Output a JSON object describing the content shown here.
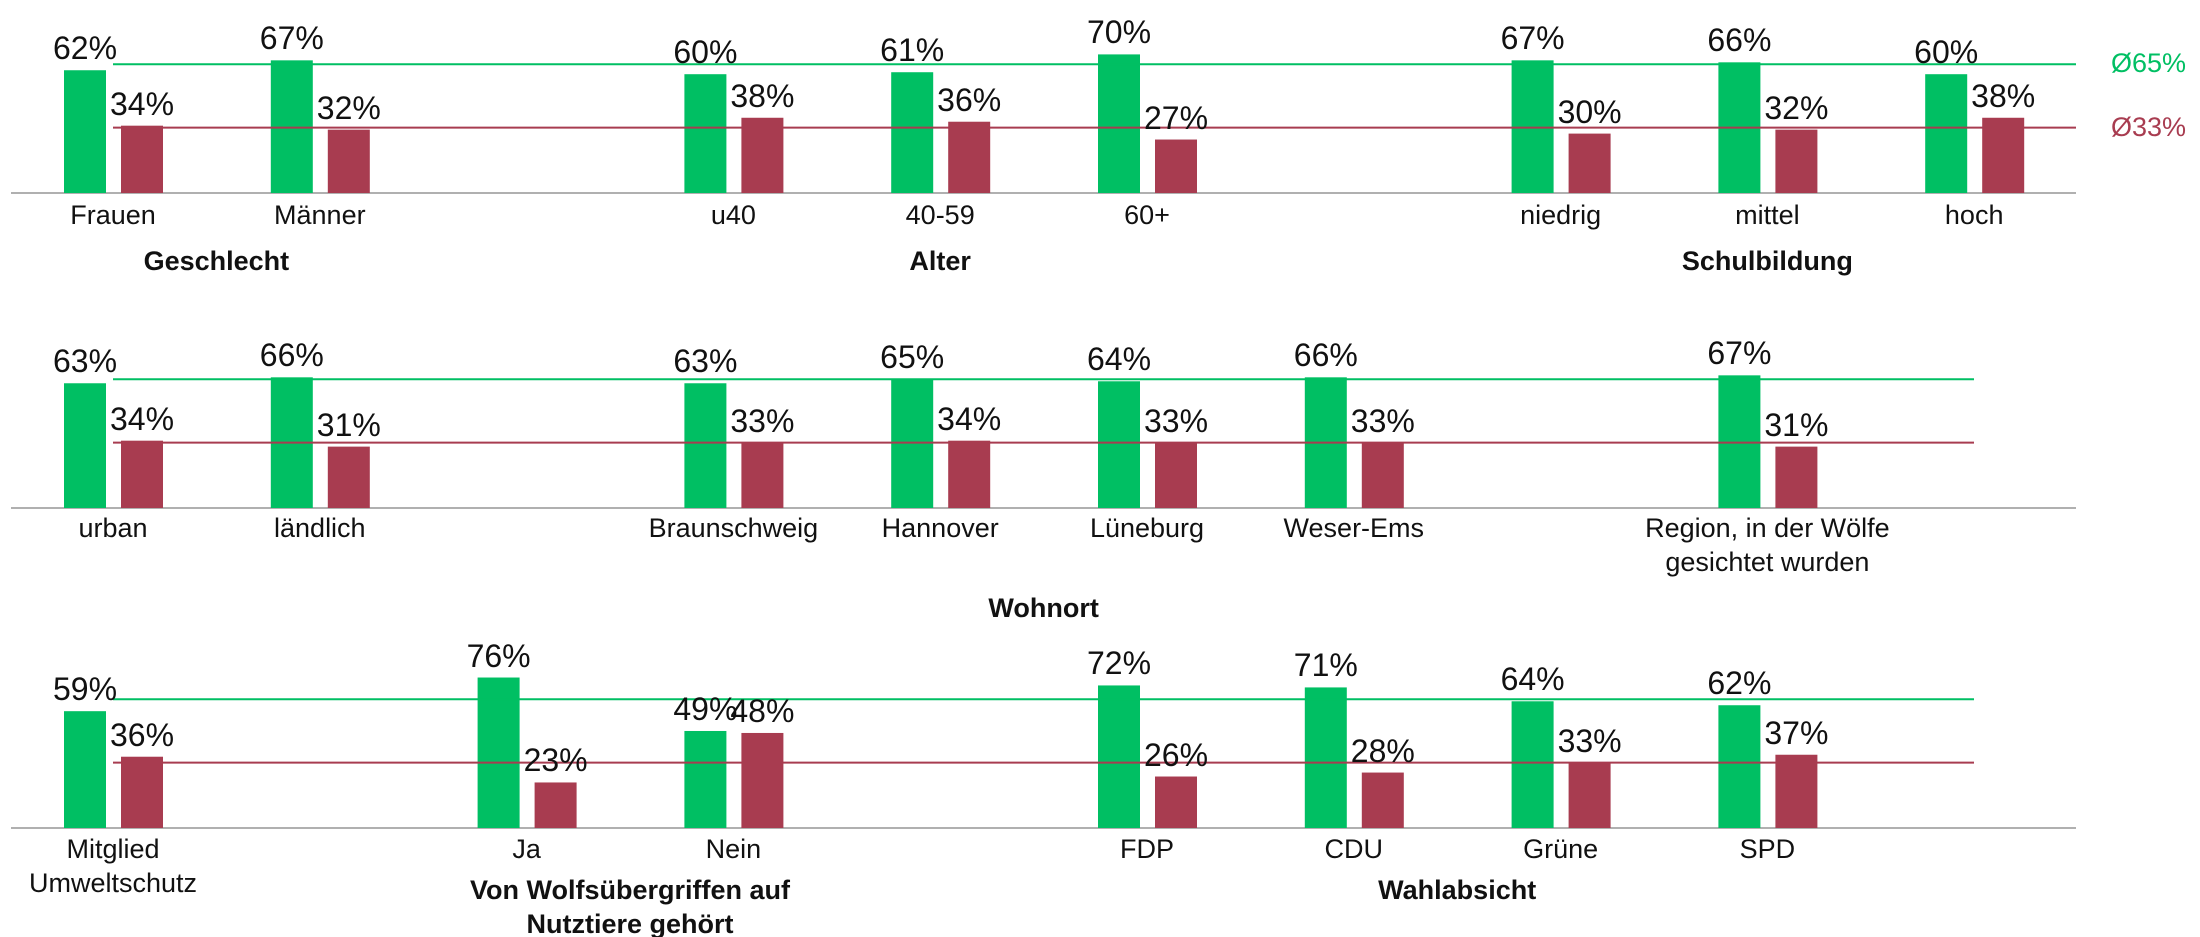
{
  "chart_data": [
    {
      "type": "bar",
      "ylim": [
        0,
        100
      ],
      "categories": [
        "Frauen",
        "Männer",
        null,
        "u40",
        "40-59",
        "60+",
        null,
        "niedrig",
        "mittel",
        "hoch"
      ],
      "group_labels": [
        "Geschlecht",
        "Alter",
        "Schulbildung"
      ],
      "series": [
        {
          "color": "#00bf63",
          "values": [
            62,
            67,
            null,
            60,
            61,
            70,
            null,
            67,
            66,
            60
          ],
          "value_labels": [
            "62%",
            "67%",
            null,
            "60%",
            "61%",
            "70%",
            null,
            "67%",
            "66%",
            "60%"
          ]
        },
        {
          "color": "#a83c50",
          "values": [
            34,
            32,
            null,
            38,
            36,
            27,
            null,
            30,
            32,
            38
          ],
          "value_labels": [
            "34%",
            "32%",
            null,
            "38%",
            "36%",
            "27%",
            null,
            "30%",
            "32%",
            "38%"
          ]
        }
      ],
      "reference_lines": [
        {
          "value": 65,
          "label": "Ø65%",
          "color": "#00bf63"
        },
        {
          "value": 33,
          "label": "Ø33%",
          "color": "#a83c50"
        }
      ]
    },
    {
      "type": "bar",
      "ylim": [
        0,
        100
      ],
      "categories": [
        "urban",
        "ländlich",
        null,
        "Braunschweig",
        "Hannover",
        "Lüneburg",
        "Weser-Ems",
        null,
        "Region, in der Wölfe\ngesichtet wurden"
      ],
      "group_labels": [
        "Wohnort"
      ],
      "series": [
        {
          "color": "#00bf63",
          "values": [
            63,
            66,
            null,
            63,
            65,
            64,
            66,
            null,
            67
          ],
          "value_labels": [
            "63%",
            "66%",
            null,
            "63%",
            "65%",
            "64%",
            "66%",
            null,
            "67%"
          ]
        },
        {
          "color": "#a83c50",
          "values": [
            34,
            31,
            null,
            33,
            34,
            33,
            33,
            null,
            31
          ],
          "value_labels": [
            "34%",
            "31%",
            null,
            "33%",
            "34%",
            "33%",
            "33%",
            null,
            "31%"
          ]
        }
      ],
      "reference_lines": [
        {
          "value": 65,
          "color": "#00bf63"
        },
        {
          "value": 33,
          "color": "#a83c50"
        }
      ]
    },
    {
      "type": "bar",
      "ylim": [
        0,
        100
      ],
      "categories": [
        "Mitglied\nUmweltschutz",
        null,
        "Ja",
        "Nein",
        null,
        "FDP",
        "CDU",
        "Grüne",
        "SPD"
      ],
      "group_labels": [
        "Von Wolfsübergriffen auf\nNutztiere gehört",
        "Wahlabsicht"
      ],
      "series": [
        {
          "color": "#00bf63",
          "values": [
            59,
            null,
            76,
            49,
            null,
            72,
            71,
            64,
            62
          ],
          "value_labels": [
            "59%",
            null,
            "76%",
            "49%",
            null,
            "72%",
            "71%",
            "64%",
            "62%"
          ]
        },
        {
          "color": "#a83c50",
          "values": [
            36,
            null,
            23,
            48,
            null,
            26,
            28,
            33,
            37
          ],
          "value_labels": [
            "36%",
            null,
            "23%",
            "48%",
            null,
            "26%",
            "28%",
            "33%",
            "37%"
          ]
        }
      ],
      "reference_lines": [
        {
          "value": 65,
          "color": "#00bf63"
        },
        {
          "value": 33,
          "color": "#a83c50"
        }
      ]
    }
  ]
}
